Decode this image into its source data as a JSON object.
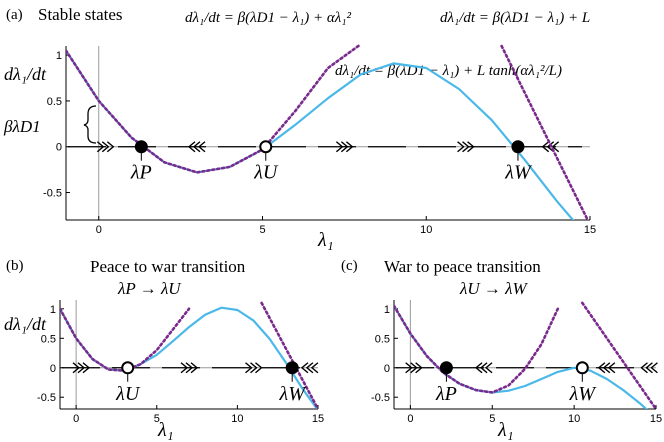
{
  "figure": {
    "panel_labels": [
      "(a)",
      "(b)",
      "(c)"
    ],
    "panel_a": {
      "title": "Stable states",
      "eq_quadratic": "dλ₁/dt = β(λD1 − λ₁) + αλ₁²",
      "eq_linear": "dλ₁/dt = β(λD1 − λ₁) + L",
      "eq_tanh": "dλ₁/dt = β(λD1 − λ₁) + L tanh(αλ₁²/L)",
      "brace_label": "βλD1",
      "ylabel": "dλ₁/dt",
      "xlabel": "λ₁"
    },
    "panel_b": {
      "title_line1": "Peace to war transition",
      "title_line2": "λP → λU",
      "ylabel": "dλ₁/dt",
      "xlabel": "λ₁"
    },
    "panel_c": {
      "title_line1": "War to peace transition",
      "title_line2": "λU → λW",
      "xlabel": "λ₁"
    }
  },
  "colors": {
    "tanh_curve": "#4ab8e8",
    "quadratic_and_linear": "#7a2a8c",
    "axis": "#000000",
    "zero_line": "#9a9a9a"
  },
  "chart_data": [
    {
      "type": "line",
      "panel": "(a)",
      "xlim": [
        -1,
        15
      ],
      "ylim": [
        -0.8,
        1.1
      ],
      "xticks": [
        0,
        5,
        10,
        15
      ],
      "yticks": [
        -0.5,
        0,
        0.5,
        1
      ],
      "ytick_labels": [
        "-0.5",
        "0",
        "0.5",
        "1"
      ],
      "xtick_labels": [
        "0",
        "5",
        "10",
        "15"
      ],
      "series": [
        {
          "kind": "tanh",
          "x": [
            -1,
            0,
            1,
            2,
            3,
            4,
            5,
            6,
            7,
            8,
            9,
            10,
            11,
            12,
            13,
            14,
            14.6
          ],
          "y": [
            1.05,
            0.5,
            0.1,
            -0.17,
            -0.28,
            -0.22,
            -0.03,
            0.24,
            0.53,
            0.79,
            0.91,
            0.86,
            0.63,
            0.29,
            -0.14,
            -0.6,
            -0.85
          ]
        },
        {
          "kind": "quadratic",
          "x": [
            -1,
            0,
            1,
            2,
            3,
            4,
            5,
            6,
            7,
            8
          ],
          "y": [
            1.05,
            0.5,
            0.1,
            -0.17,
            -0.28,
            -0.22,
            -0.03,
            0.39,
            0.86,
            1.12
          ]
        },
        {
          "kind": "linear",
          "x": [
            12.3,
            15
          ],
          "y": [
            1.1,
            -0.85
          ]
        }
      ],
      "points": [
        {
          "label": "λP",
          "x": 1.3,
          "y": 0,
          "stable": true
        },
        {
          "label": "λU",
          "x": 5.1,
          "y": 0,
          "stable": false
        },
        {
          "label": "λW",
          "x": 12.8,
          "y": 0,
          "stable": true
        }
      ],
      "flow": [
        {
          "x": 0.2,
          "dir": "right"
        },
        {
          "x": 3.0,
          "dir": "left"
        },
        {
          "x": 7.5,
          "dir": "right"
        },
        {
          "x": 11.2,
          "dir": "right"
        },
        {
          "x": 13.8,
          "dir": "left"
        }
      ]
    },
    {
      "type": "line",
      "panel": "(b)",
      "xlim": [
        -1,
        15
      ],
      "ylim": [
        -0.7,
        1.15
      ],
      "xticks": [
        0,
        5,
        10,
        15
      ],
      "yticks": [
        -0.5,
        0,
        0.5,
        1
      ],
      "ytick_labels": [
        "-0.5",
        "0",
        "0.5",
        "1"
      ],
      "xtick_labels": [
        "0",
        "5",
        "10",
        "15"
      ],
      "series": [
        {
          "kind": "tanh",
          "x": [
            -1,
            0,
            1,
            2,
            3,
            4,
            5,
            6,
            7,
            8,
            9,
            10,
            11,
            12,
            13,
            14,
            15
          ],
          "y": [
            1.0,
            0.5,
            0.15,
            -0.03,
            -0.05,
            0.06,
            0.22,
            0.45,
            0.69,
            0.9,
            1.02,
            0.98,
            0.8,
            0.49,
            0.09,
            -0.34,
            -0.72
          ]
        },
        {
          "kind": "quadratic",
          "x": [
            -1,
            0,
            1,
            2,
            3,
            4,
            5,
            6,
            7
          ],
          "y": [
            1.0,
            0.5,
            0.15,
            -0.03,
            -0.05,
            0.06,
            0.3,
            0.65,
            1.0
          ]
        },
        {
          "kind": "linear",
          "x": [
            11.5,
            15
          ],
          "y": [
            1.1,
            -0.7
          ]
        }
      ],
      "points": [
        {
          "label": "λU",
          "x": 3.2,
          "y": 0,
          "stable": false
        },
        {
          "label": "λW",
          "x": 13.4,
          "y": 0,
          "stable": true
        }
      ],
      "flow": [
        {
          "x": 0.3,
          "dir": "right"
        },
        {
          "x": 7.0,
          "dir": "right"
        },
        {
          "x": 11.0,
          "dir": "right"
        },
        {
          "x": 14.5,
          "dir": "left"
        }
      ]
    },
    {
      "type": "line",
      "panel": "(c)",
      "xlim": [
        -1,
        15
      ],
      "ylim": [
        -0.7,
        1.15
      ],
      "xticks": [
        0,
        5,
        10,
        15
      ],
      "yticks": [
        -0.5,
        0,
        0.5,
        1
      ],
      "ytick_labels": [
        "-0.5",
        "0",
        "0.5",
        "1"
      ],
      "xtick_labels": [
        "0",
        "5",
        "10",
        "15"
      ],
      "series": [
        {
          "kind": "tanh",
          "x": [
            -1,
            0,
            1,
            2,
            3,
            4,
            5,
            6,
            7,
            8,
            9,
            10,
            11,
            12,
            13,
            14,
            15
          ],
          "y": [
            1.05,
            0.58,
            0.2,
            -0.08,
            -0.27,
            -0.38,
            -0.42,
            -0.39,
            -0.31,
            -0.19,
            -0.07,
            0.0,
            -0.05,
            -0.19,
            -0.38,
            -0.6,
            -0.85
          ]
        },
        {
          "kind": "quadratic",
          "x": [
            -1,
            0,
            1,
            2,
            3,
            4,
            5,
            6,
            7,
            8,
            9
          ],
          "y": [
            1.05,
            0.58,
            0.2,
            -0.08,
            -0.27,
            -0.38,
            -0.42,
            -0.3,
            -0.02,
            0.4,
            1.0
          ]
        },
        {
          "kind": "linear",
          "x": [
            10.5,
            15
          ],
          "y": [
            1.1,
            -0.7
          ]
        }
      ],
      "points": [
        {
          "label": "λP",
          "x": 2.2,
          "y": 0,
          "stable": true
        },
        {
          "label": "λW",
          "x": 10.5,
          "y": 0,
          "stable": false
        }
      ],
      "flow": [
        {
          "x": 0.2,
          "dir": "right"
        },
        {
          "x": 4.5,
          "dir": "left"
        },
        {
          "x": 12.0,
          "dir": "left"
        },
        {
          "x": 14.6,
          "dir": "left"
        }
      ]
    }
  ]
}
